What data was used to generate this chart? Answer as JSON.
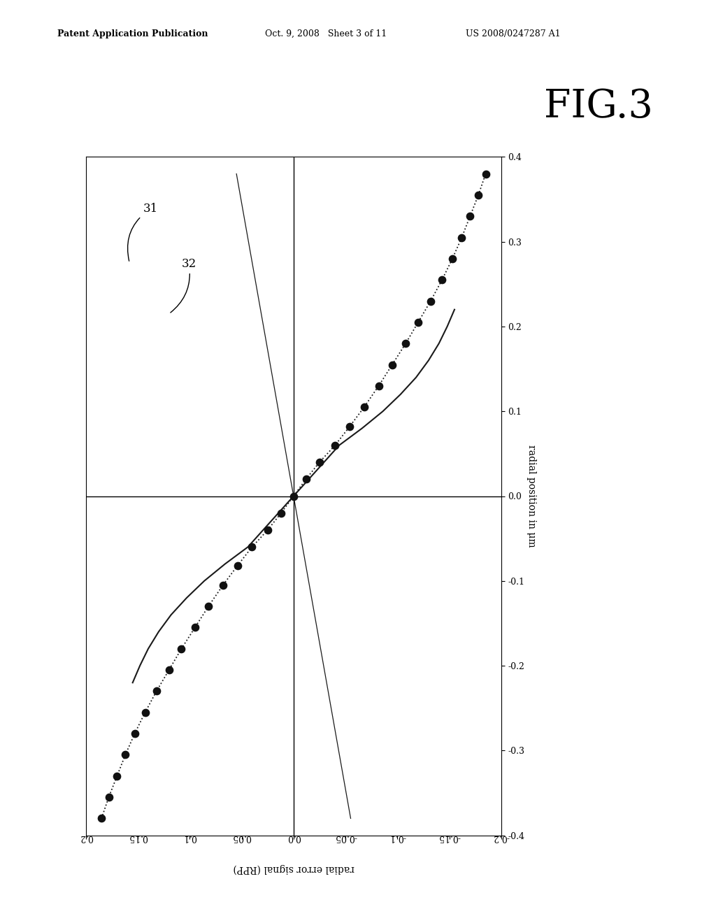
{
  "title": "FIG.3",
  "header_left": "Patent Application Publication",
  "header_mid": "Oct. 9, 2008   Sheet 3 of 11",
  "header_right": "US 2008/0247287 A1",
  "xlabel_right": "radial position in μm",
  "ylabel_bottom": "radial error signal (RPP)",
  "background_color": "#ffffff",
  "plot_bg_color": "#ffffff",
  "curve_color": "#1a1a1a",
  "dot_color": "#111111",
  "dot_size": 55,
  "note31_label": "31",
  "note32_label": "32",
  "rpp_xlim": [
    -0.2,
    0.2
  ],
  "rad_ylim": [
    -0.4,
    0.4
  ],
  "rpp_ticks": [
    -0.2,
    -0.15,
    -0.1,
    -0.05,
    0.0,
    0.05,
    0.1,
    0.15,
    0.2
  ],
  "rad_ticks": [
    -0.4,
    -0.3,
    -0.2,
    -0.1,
    0.0,
    0.1,
    0.2,
    0.3,
    0.4
  ],
  "curve31_rpp": [
    0.185,
    0.178,
    0.17,
    0.162,
    0.153,
    0.143,
    0.132,
    0.12,
    0.108,
    0.095,
    0.082,
    0.068,
    0.054,
    0.04,
    0.025,
    0.012,
    0.0,
    -0.012,
    -0.025,
    -0.04,
    -0.054,
    -0.068,
    -0.082,
    -0.095,
    -0.108,
    -0.12,
    -0.132,
    -0.143,
    -0.153,
    -0.162,
    -0.17,
    -0.178,
    -0.185
  ],
  "curve31_rad": [
    -0.38,
    -0.355,
    -0.33,
    -0.305,
    -0.28,
    -0.255,
    -0.23,
    -0.205,
    -0.18,
    -0.155,
    -0.13,
    -0.105,
    -0.082,
    -0.06,
    -0.04,
    -0.02,
    0.0,
    0.02,
    0.04,
    0.06,
    0.082,
    0.105,
    0.13,
    0.155,
    0.18,
    0.205,
    0.23,
    0.255,
    0.28,
    0.305,
    0.33,
    0.355,
    0.38
  ],
  "curve32_rpp": [
    0.155,
    0.148,
    0.14,
    0.13,
    0.118,
    0.103,
    0.086,
    0.066,
    0.044,
    0.022,
    0.0,
    -0.022,
    -0.044,
    -0.066,
    -0.086,
    -0.103,
    -0.118,
    -0.13,
    -0.14,
    -0.148,
    -0.155
  ],
  "curve32_rad": [
    -0.22,
    -0.2,
    -0.18,
    -0.16,
    -0.14,
    -0.12,
    -0.1,
    -0.08,
    -0.06,
    -0.03,
    0.0,
    0.03,
    0.06,
    0.08,
    0.1,
    0.12,
    0.14,
    0.16,
    0.18,
    0.2,
    0.22
  ],
  "linear_rpp": [
    -0.055,
    0.055
  ],
  "linear_rad": [
    -0.38,
    0.38
  ]
}
